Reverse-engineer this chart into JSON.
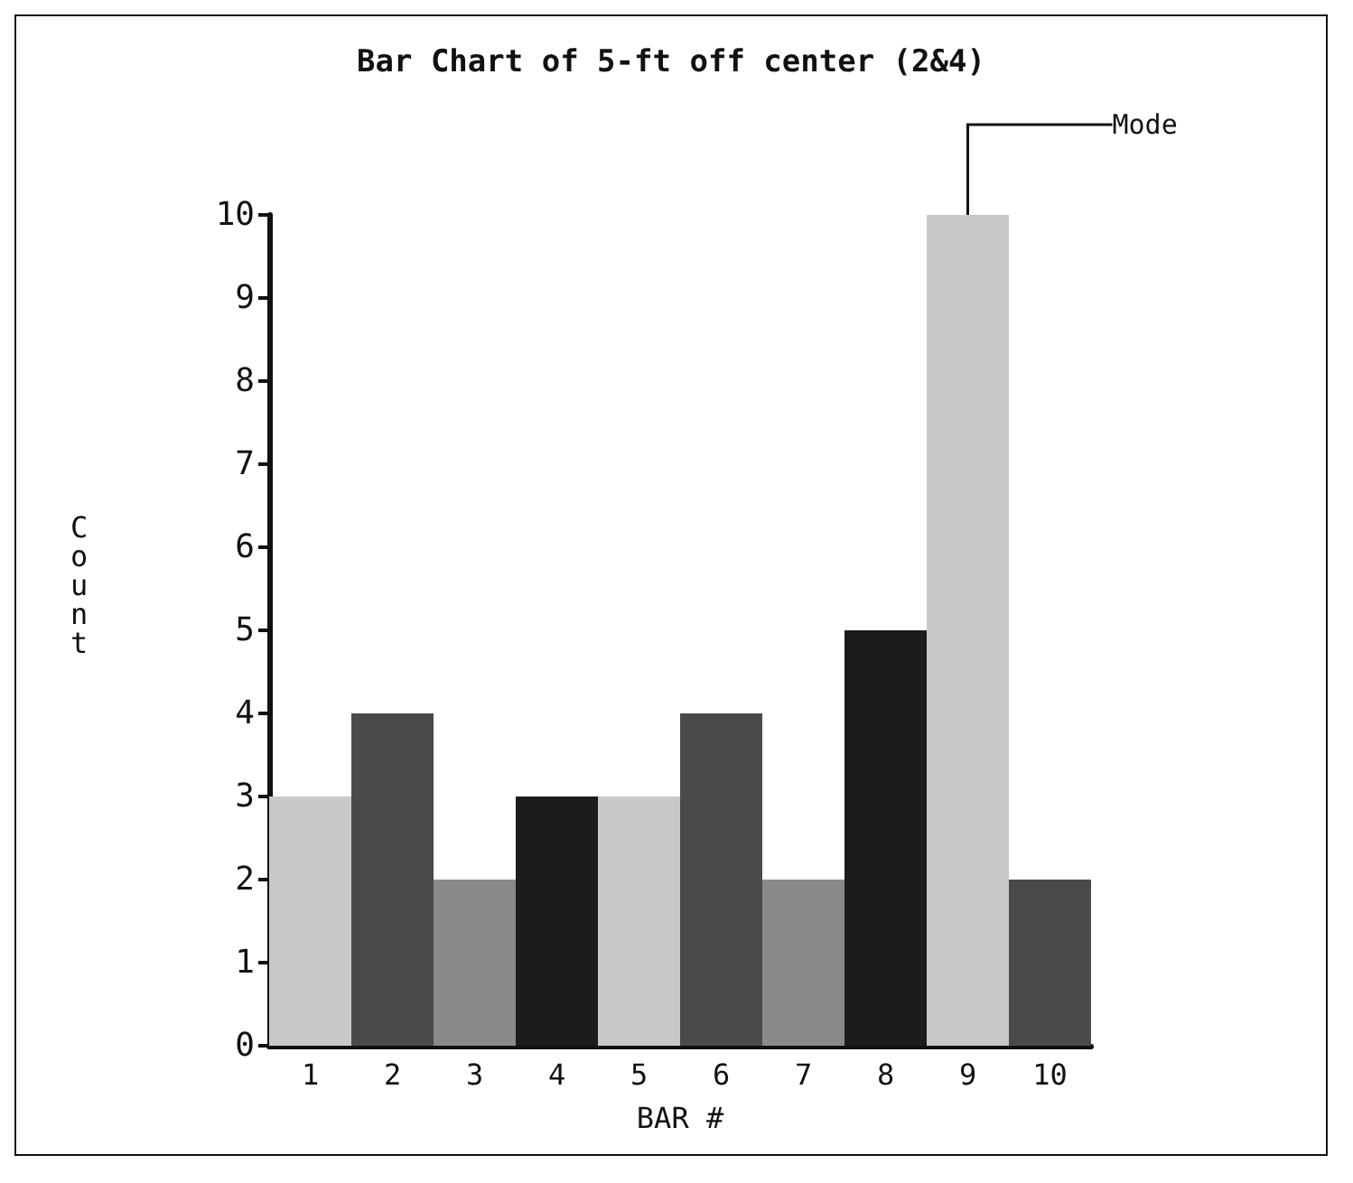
{
  "chart_data": {
    "type": "bar",
    "title": "Bar Chart of 5-ft off center (2&4)",
    "xlabel": "BAR #",
    "ylabel": "Count",
    "categories": [
      "1",
      "2",
      "3",
      "4",
      "5",
      "6",
      "7",
      "8",
      "9",
      "10"
    ],
    "values": [
      3,
      4,
      2,
      3,
      3,
      4,
      2,
      5,
      10,
      2
    ],
    "colors": [
      "#c8c8c8",
      "#4a4a4a",
      "#8a8a8a",
      "#1c1c1c",
      "#c8c8c8",
      "#4a4a4a",
      "#8a8a8a",
      "#1c1c1c",
      "#c8c8c8",
      "#4a4a4a"
    ],
    "ylim": [
      0,
      10
    ],
    "yticks": [
      0,
      1,
      2,
      3,
      4,
      5,
      6,
      7,
      8,
      9,
      10
    ],
    "grid": false,
    "annotations": [
      {
        "text": "Mode",
        "x": "9",
        "y": 10
      }
    ]
  }
}
